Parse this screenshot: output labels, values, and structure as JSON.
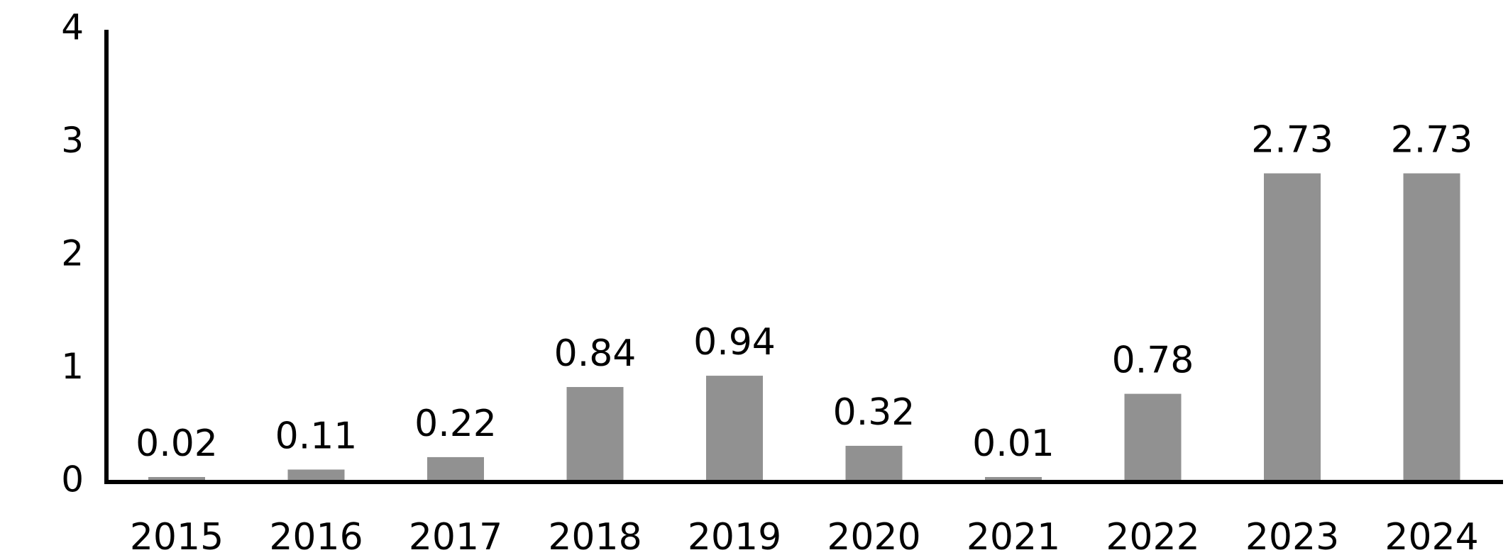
{
  "chart_data": {
    "type": "bar",
    "title": "",
    "xlabel": "",
    "ylabel": "",
    "categories": [
      "2015",
      "2016",
      "2017",
      "2018",
      "2019",
      "2020",
      "2021",
      "2022",
      "2023",
      "2024"
    ],
    "values": [
      0.02,
      0.11,
      0.22,
      0.84,
      0.94,
      0.32,
      0.01,
      0.78,
      2.73,
      2.73
    ],
    "data_labels": [
      "0.02",
      "0.11",
      "0.22",
      "0.84",
      "0.94",
      "0.32",
      "0.01",
      "0.78",
      "2.73",
      "2.73"
    ],
    "ylim": [
      0,
      4
    ],
    "yticks": [
      "0",
      "1",
      "2",
      "3",
      "4"
    ],
    "grid": false,
    "legend": "none",
    "bar_color": "#919191",
    "axis_color": "#000000"
  }
}
